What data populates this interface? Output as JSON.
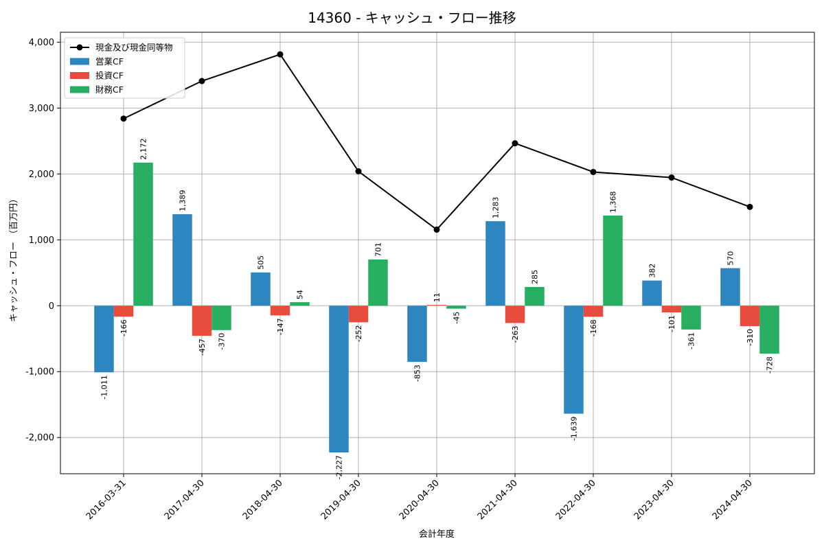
{
  "chart_data": {
    "type": "bar",
    "title": "14360 - キャッシュ・フロー推移",
    "xlabel": "会計年度",
    "ylabel": "キャッシュ・フロー （百万円）",
    "categories": [
      "2016-03-31",
      "2017-04-30",
      "2018-04-30",
      "2019-04-30",
      "2020-04-30",
      "2021-04-30",
      "2022-04-30",
      "2023-04-30",
      "2024-04-30"
    ],
    "ylim": [
      -2550,
      4150
    ],
    "yticks": [
      -2000,
      -1000,
      0,
      1000,
      2000,
      3000,
      4000
    ],
    "ytick_labels": [
      "-2,000",
      "-1,000",
      "0",
      "1,000",
      "2,000",
      "3,000",
      "4,000"
    ],
    "grid": true,
    "legend_position": "top-left",
    "series": [
      {
        "name": "営業CF",
        "kind": "bar",
        "color": "#2E86C1",
        "values": [
          -1011,
          1389,
          505,
          -2227,
          -853,
          1283,
          -1639,
          382,
          570
        ],
        "labels": [
          "-1,011",
          "1,389",
          "505",
          "-2,227",
          "-853",
          "1,283",
          "-1,639",
          "382",
          "570"
        ]
      },
      {
        "name": "投資CF",
        "kind": "bar",
        "color": "#E74C3C",
        "values": [
          -166,
          -457,
          -147,
          -252,
          11,
          -263,
          -168,
          -101,
          -310
        ],
        "labels": [
          "-166",
          "-457",
          "-147",
          "-252",
          "11",
          "-263",
          "-168",
          "-101",
          "-310"
        ]
      },
      {
        "name": "財務CF",
        "kind": "bar",
        "color": "#27AE60",
        "values": [
          2172,
          -370,
          54,
          701,
          -45,
          285,
          1368,
          -361,
          -728
        ],
        "labels": [
          "2,172",
          "-370",
          "54",
          "701",
          "-45",
          "285",
          "1,368",
          "-361",
          "-728"
        ]
      },
      {
        "name": "現金及び現金同等物",
        "kind": "line",
        "color": "#000000",
        "values": [
          2840,
          3410,
          3815,
          2040,
          1155,
          2465,
          2030,
          1945,
          1500
        ]
      }
    ]
  }
}
